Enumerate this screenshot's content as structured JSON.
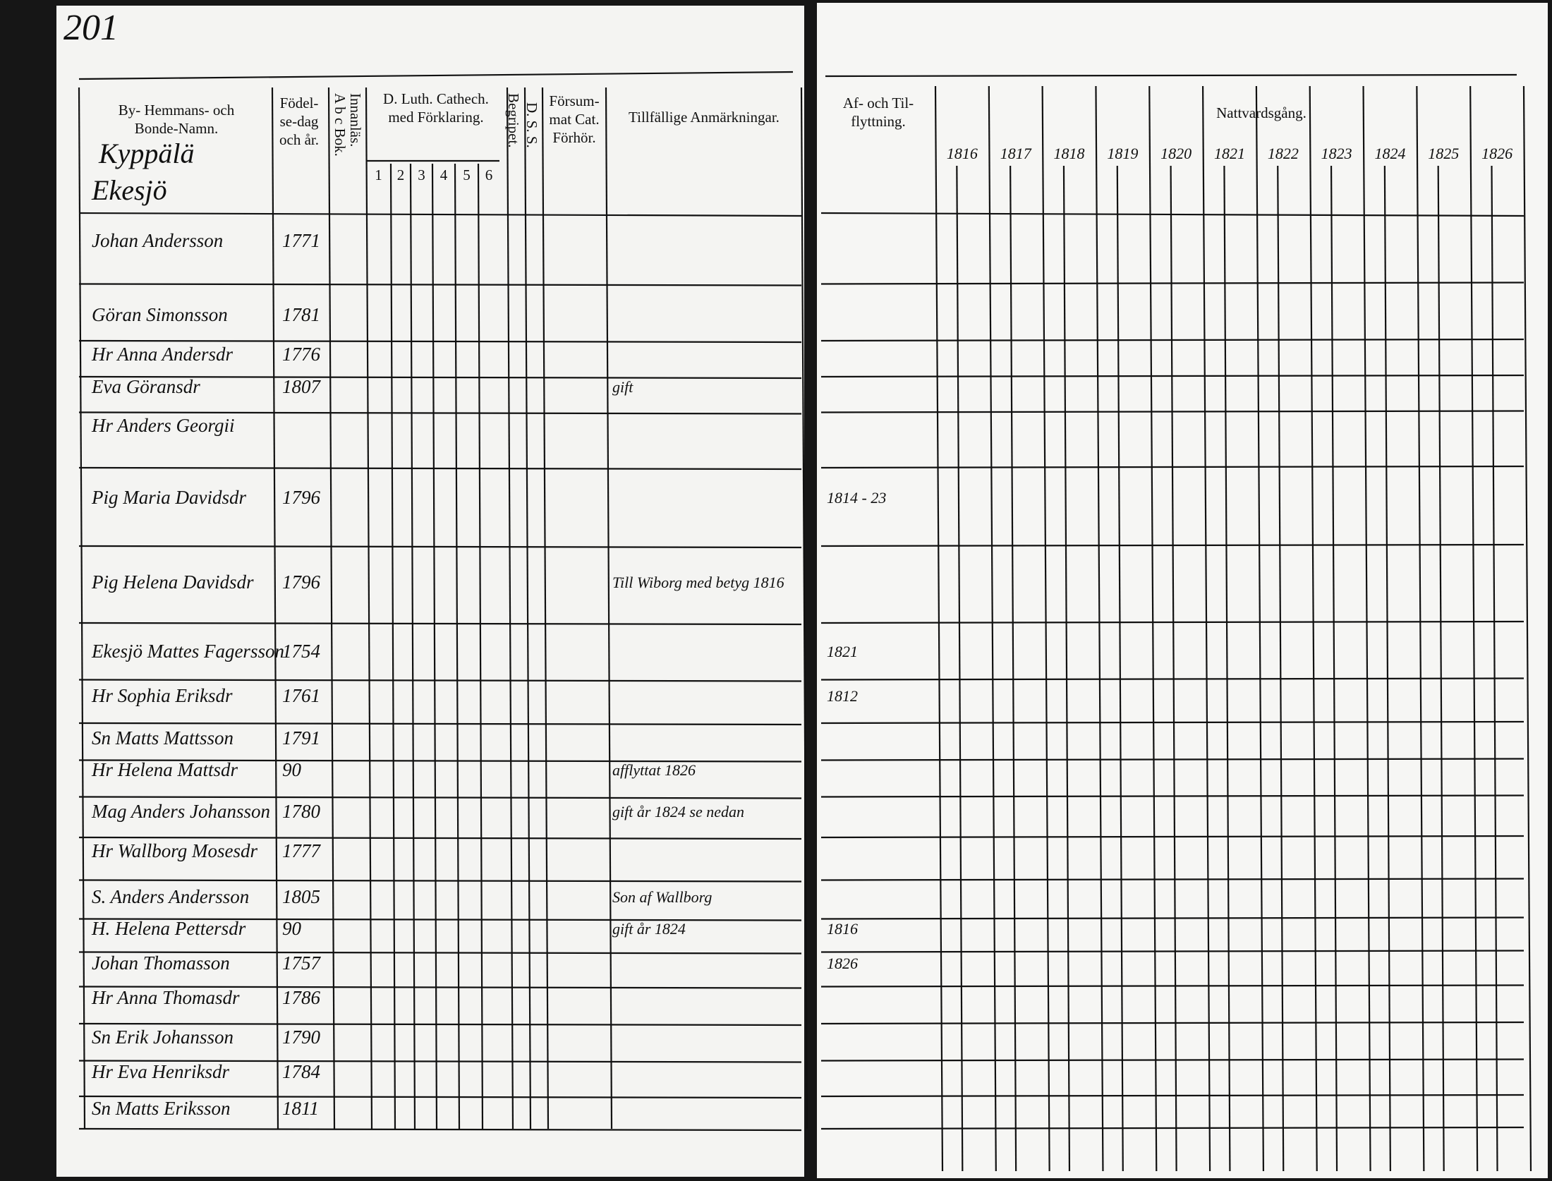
{
  "header": {
    "page_number": "201",
    "columns": {
      "name": [
        "By- Hemmans- och",
        "Bonde-Namn."
      ],
      "birth": [
        "Födel-",
        "se-dag",
        "och år."
      ],
      "abc": [
        "A b c Bok.",
        "Innanläs."
      ],
      "catechism": [
        "D. Luth. Cathech.",
        "med Förklaring."
      ],
      "catechism_parts": [
        "1",
        "2",
        "3",
        "4",
        "5",
        "6"
      ],
      "understood": [
        "Begripet."
      ],
      "dss": [
        "D. S. S."
      ],
      "missed": [
        "Försum-",
        "mat Cat.",
        "Förhör."
      ],
      "remarks": [
        "Tillfällige Anmärkningar."
      ],
      "moved": [
        "Af- och Til-",
        "flyttning."
      ],
      "communion": [
        "Nattvardsgång."
      ]
    },
    "years": [
      "1816",
      "1817",
      "1818",
      "1819",
      "1820",
      "1821",
      "1822",
      "1823",
      "1824",
      "1825",
      "1826"
    ]
  },
  "household": [
    "Kyppälä",
    "Ekesjö"
  ],
  "rows": [
    {
      "name": "Johan Andersson",
      "born": "1771"
    },
    {
      "name": "Göran Simonsson",
      "born": "1781"
    },
    {
      "name": "Hr Anna Andersdr",
      "born": "1776"
    },
    {
      "name": "Eva Göransdr",
      "born": "1807",
      "remark": "gift"
    },
    {
      "name": "Hr Anders Georgii"
    },
    {
      "name": "Pig Maria Davidsdr",
      "born": "1796",
      "moved": "1814 - 23"
    },
    {
      "name": "Pig Helena Davidsdr",
      "born": "1796",
      "remark": "Till Wiborg med betyg 1816"
    },
    {
      "name": "Ekesjö Mattes Fagersson",
      "born": "1754",
      "moved": "1821"
    },
    {
      "name": "Hr Sophia Eriksdr",
      "born": "1761",
      "moved": "1812"
    },
    {
      "name": "Sn Matts Mattsson",
      "born": "1791"
    },
    {
      "name": "Hr Helena Mattsdr",
      "born": "90",
      "remark": "afflyttat 1826"
    },
    {
      "name": "Mag Anders Johansson",
      "born": "1780",
      "remark": "gift år 1824 se nedan"
    },
    {
      "name": "Hr Wallborg Mosesdr",
      "born": "1777"
    },
    {
      "name": "S. Anders Andersson",
      "born": "1805",
      "remark": "Son af Wallborg"
    },
    {
      "name": "H. Helena Pettersdr",
      "born": "90",
      "remark": "gift år 1824",
      "moved": "1816"
    },
    {
      "name": "Johan Thomasson",
      "born": "1757",
      "moved": "1826"
    },
    {
      "name": "Hr Anna Thomasdr",
      "born": "1786"
    },
    {
      "name": "Sn Erik Johansson",
      "born": "1790"
    },
    {
      "name": "Hr Eva Henriksdr",
      "born": "1784"
    },
    {
      "name": "Sn Matts Eriksson",
      "born": "1811"
    }
  ]
}
